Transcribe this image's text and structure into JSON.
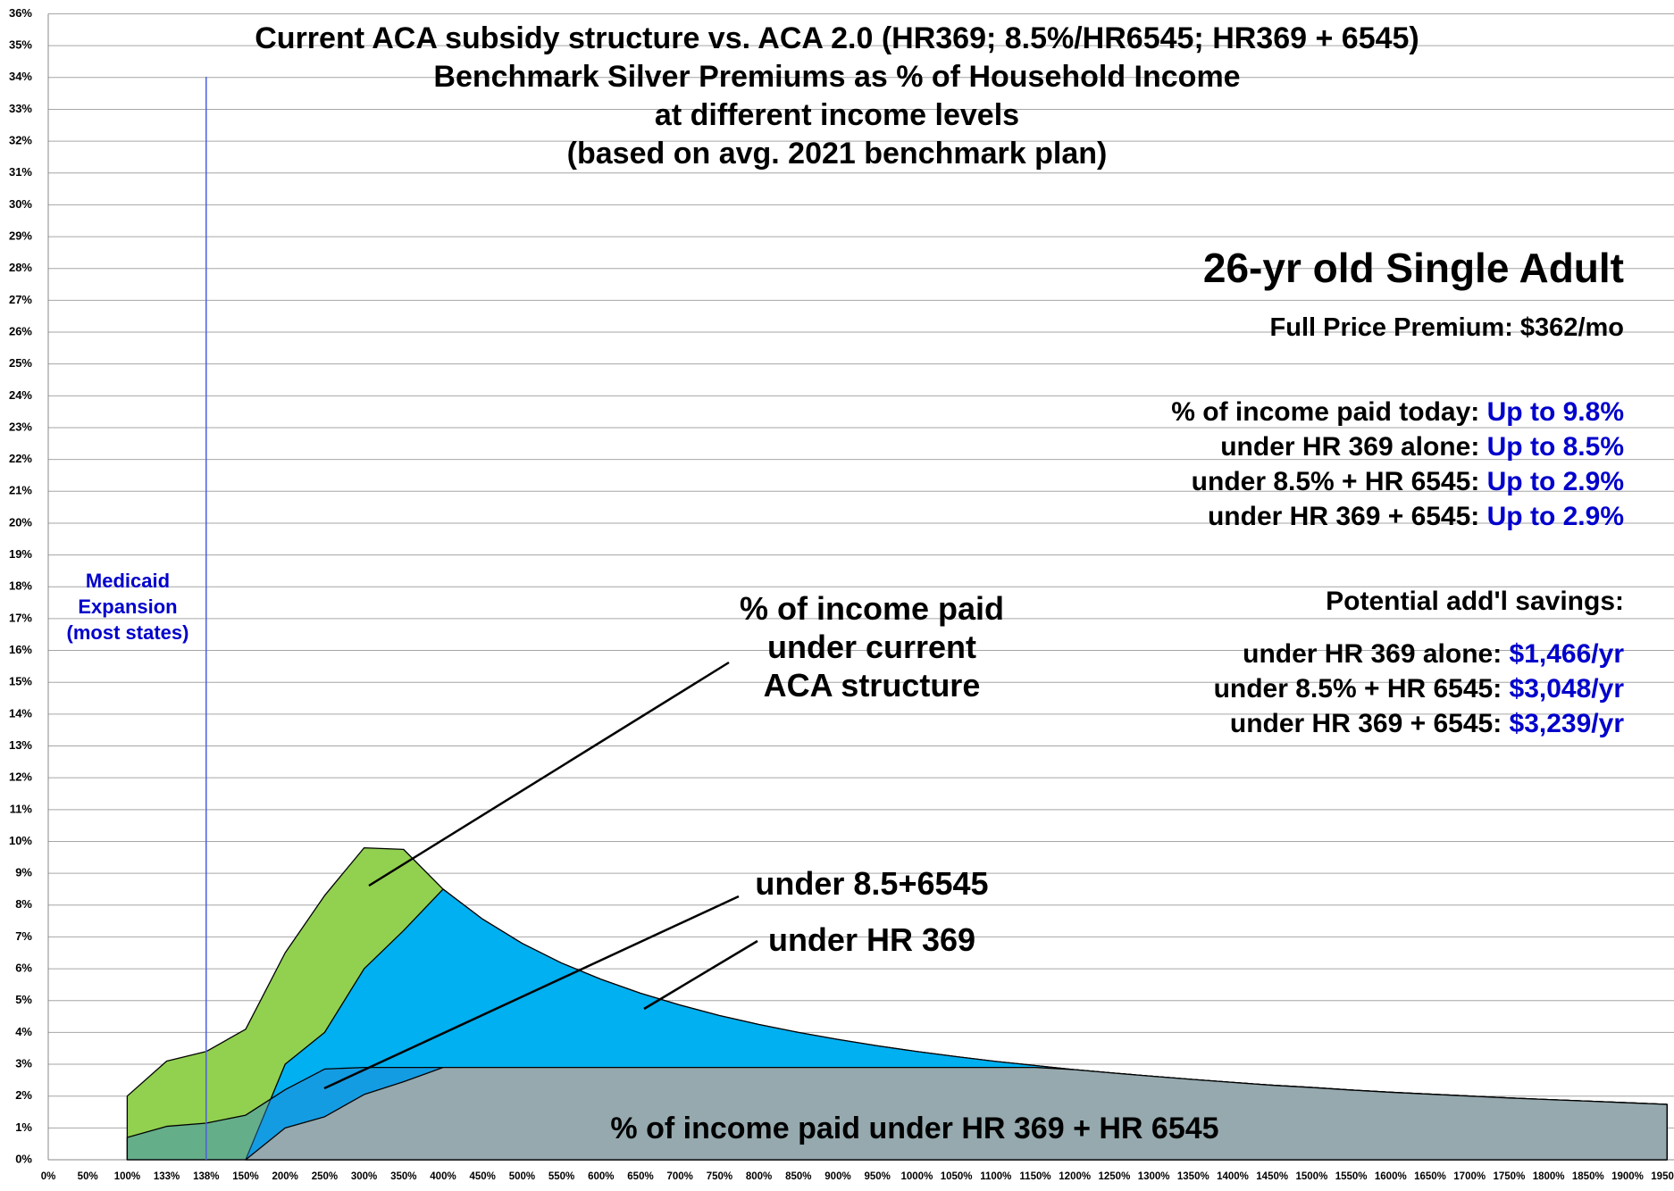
{
  "chart_data": {
    "type": "area",
    "title": "Current ACA subsidy structure vs. ACA 2.0 (HR369; 8.5%/HR6545; HR369 + 6545)\nBenchmark Silver Premiums as % of Household Income\nat different income levels\n(based on avg. 2021 benchmark plan)",
    "categories": [
      "0%",
      "50%",
      "100%",
      "133%",
      "138%",
      "150%",
      "200%",
      "250%",
      "300%",
      "350%",
      "400%",
      "450%",
      "500%",
      "550%",
      "600%",
      "650%",
      "700%",
      "750%",
      "800%",
      "850%",
      "900%",
      "950%",
      "1000%",
      "1050%",
      "1100%",
      "1150%",
      "1200%",
      "1250%",
      "1300%",
      "1350%",
      "1400%",
      "1450%",
      "1500%",
      "1550%",
      "1600%",
      "1650%",
      "1700%",
      "1750%",
      "1800%",
      "1850%",
      "1900%",
      "1950%"
    ],
    "series": [
      {
        "name": "% of income paid\nunder current\nACA structure",
        "color": "#92d050",
        "values": [
          null,
          null,
          2.0,
          3.1,
          3.4,
          4.1,
          6.5,
          8.3,
          9.8,
          9.75,
          8.5,
          7.56,
          6.8,
          6.18,
          5.67,
          5.23,
          4.86,
          4.53,
          4.25,
          4.0,
          3.78,
          3.58,
          3.4,
          3.24,
          3.09,
          2.96,
          2.83,
          2.72,
          2.62,
          2.52,
          2.43,
          2.34,
          2.27,
          2.19,
          2.12,
          2.06,
          2.0,
          1.94,
          1.89,
          1.84,
          1.79,
          1.74
        ]
      },
      {
        "name": "under HR 369",
        "color": "#00b0f0",
        "values": [
          null,
          null,
          null,
          null,
          null,
          0,
          3.0,
          4.0,
          6.0,
          7.2,
          8.5,
          7.56,
          6.8,
          6.18,
          5.67,
          5.23,
          4.86,
          4.53,
          4.25,
          4.0,
          3.78,
          3.58,
          3.4,
          3.24,
          3.09,
          2.96,
          2.83,
          2.72,
          2.62,
          2.52,
          2.43,
          2.34,
          2.27,
          2.19,
          2.12,
          2.06,
          2.0,
          1.94,
          1.89,
          1.84,
          1.79,
          1.74
        ]
      },
      {
        "name": "under 8.5+6545",
        "color": "#2d85d0",
        "values": [
          null,
          null,
          0.7,
          1.05,
          1.15,
          1.4,
          2.2,
          2.85,
          2.9,
          2.9,
          2.9,
          2.9,
          2.9,
          2.9,
          2.9,
          2.9,
          2.9,
          2.9,
          2.9,
          2.9,
          2.9,
          2.9,
          2.9,
          2.9,
          2.9,
          2.9,
          2.83,
          2.72,
          2.62,
          2.52,
          2.43,
          2.34,
          2.27,
          2.19,
          2.12,
          2.06,
          2.0,
          1.94,
          1.89,
          1.84,
          1.79,
          1.74
        ]
      },
      {
        "name": "% of income paid under HR 369 + HR 6545",
        "color": "#95a9ae",
        "values": [
          null,
          null,
          null,
          null,
          null,
          0,
          1.0,
          1.35,
          2.05,
          2.45,
          2.9,
          2.9,
          2.9,
          2.9,
          2.9,
          2.9,
          2.9,
          2.9,
          2.9,
          2.9,
          2.9,
          2.9,
          2.9,
          2.9,
          2.9,
          2.9,
          2.83,
          2.72,
          2.62,
          2.52,
          2.43,
          2.34,
          2.27,
          2.19,
          2.12,
          2.06,
          2.0,
          1.94,
          1.89,
          1.84,
          1.79,
          1.74
        ]
      }
    ],
    "ylim": [
      0,
      36
    ],
    "yticks": [
      {
        "value": 0,
        "label": "0%"
      },
      {
        "value": 1,
        "label": "1%"
      },
      {
        "value": 2,
        "label": "2%"
      },
      {
        "value": 3,
        "label": "3%"
      },
      {
        "value": 4,
        "label": "4%"
      },
      {
        "value": 5,
        "label": "5%"
      },
      {
        "value": 6,
        "label": "6%"
      },
      {
        "value": 7,
        "label": "7%"
      },
      {
        "value": 8,
        "label": "8%"
      },
      {
        "value": 9,
        "label": "9%"
      },
      {
        "value": 10,
        "label": "10%"
      },
      {
        "value": 11,
        "label": "11%"
      },
      {
        "value": 12,
        "label": "12%"
      },
      {
        "value": 13,
        "label": "13%"
      },
      {
        "value": 14,
        "label": "14%"
      },
      {
        "value": 15,
        "label": "15%"
      },
      {
        "value": 16,
        "label": "16%"
      },
      {
        "value": 17,
        "label": "17%"
      },
      {
        "value": 18,
        "label": "18%"
      },
      {
        "value": 19,
        "label": "19%"
      },
      {
        "value": 20,
        "label": "20%"
      },
      {
        "value": 21,
        "label": "21%"
      },
      {
        "value": 22,
        "label": "22%"
      },
      {
        "value": 23,
        "label": "23%"
      },
      {
        "value": 24,
        "label": "24%"
      },
      {
        "value": 25,
        "label": "25%"
      },
      {
        "value": 26,
        "label": "26%"
      },
      {
        "value": 27,
        "label": "27%"
      },
      {
        "value": 28,
        "label": "28%"
      },
      {
        "value": 29,
        "label": "29%"
      },
      {
        "value": 30,
        "label": "30%"
      },
      {
        "value": 31,
        "label": "31%"
      },
      {
        "value": 32,
        "label": "32%"
      },
      {
        "value": 33,
        "label": "33%"
      },
      {
        "value": 34,
        "label": "34%"
      },
      {
        "value": 35,
        "label": "35%"
      },
      {
        "value": 36,
        "label": "36%"
      }
    ],
    "grid": true,
    "medicaid_note": "Medicaid\nExpansion\n(most states)",
    "info": {
      "heading": "26-yr old Single Adult",
      "subheading": "Full Price Premium: $362/mo",
      "rows": [
        {
          "label": "% of income paid today: ",
          "value": "Up to 9.8%"
        },
        {
          "label": "under HR 369 alone: ",
          "value": "Up to 8.5%"
        },
        {
          "label": "under 8.5% + HR 6545: ",
          "value": "Up to 2.9%"
        },
        {
          "label": "under HR 369 + 6545: ",
          "value": "Up to 2.9%"
        }
      ],
      "savings_title": "Potential add'l savings:",
      "savings": [
        {
          "label": "under HR 369 alone: ",
          "value": "$1,466/yr"
        },
        {
          "label": "under 8.5% + HR 6545: ",
          "value": "$3,048/yr"
        },
        {
          "label": "under HR 369 + 6545: ",
          "value": "$3,239/yr"
        }
      ]
    }
  }
}
